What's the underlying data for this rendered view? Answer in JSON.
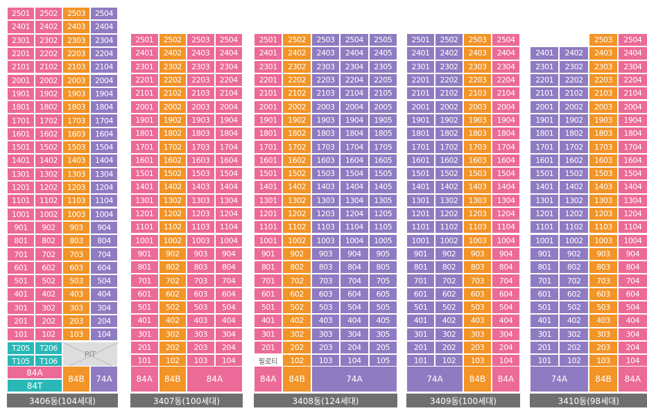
{
  "buildings": [
    {
      "name": "3406동(104세대)",
      "top_floor": 25,
      "first_tall_floor": 24,
      "units": [
        "01",
        "02",
        "03",
        "04"
      ],
      "unit_colors": [
        "p",
        "p",
        "o",
        "v"
      ],
      "top_floor_units": [
        "01",
        "02",
        "03",
        "04"
      ],
      "extra_cells": [
        {
          "text": "T205",
          "color": "t"
        },
        {
          "text": "T206",
          "color": "t"
        },
        {
          "text": "T105",
          "color": "t"
        },
        {
          "text": "T106",
          "color": "t"
        }
      ],
      "pit_label": "PIT",
      "types": [
        {
          "text": "84A",
          "color": "p"
        },
        {
          "text": "84T",
          "color": "t"
        },
        {
          "text": "84B",
          "color": "o"
        },
        {
          "text": "74A",
          "color": "v"
        }
      ]
    },
    {
      "name": "3407동(100세대)",
      "top_floor": 25,
      "units": [
        "01",
        "02",
        "03",
        "04"
      ],
      "unit_colors": [
        "p",
        "o",
        "p",
        "p"
      ],
      "types": [
        {
          "text": "84A",
          "color": "p"
        },
        {
          "text": "84B",
          "color": "o"
        },
        {
          "text": "84A",
          "color": "p"
        }
      ]
    },
    {
      "name": "3408동(124세대)",
      "top_floor": 25,
      "units": [
        "01",
        "02",
        "03",
        "04",
        "05"
      ],
      "unit_colors": [
        "p",
        "o",
        "v",
        "v",
        "v"
      ],
      "piloti_label": "필로티",
      "types": [
        {
          "text": "84A",
          "color": "p"
        },
        {
          "text": "84B",
          "color": "o"
        },
        {
          "text": "74A",
          "color": "v"
        }
      ]
    },
    {
      "name": "3409동(100세대)",
      "top_floor": 25,
      "units": [
        "01",
        "02",
        "03",
        "04"
      ],
      "unit_colors": [
        "v",
        "v",
        "o",
        "p"
      ],
      "types": [
        {
          "text": "74A",
          "color": "v"
        },
        {
          "text": "84B",
          "color": "o"
        },
        {
          "text": "84A",
          "color": "p"
        }
      ]
    },
    {
      "name": "3410동(98세대)",
      "top_floor": 25,
      "units": [
        "01",
        "02",
        "03",
        "04"
      ],
      "unit_colors": [
        "v",
        "v",
        "o",
        "p"
      ],
      "partial_top": {
        "floor": 25,
        "units": [
          "03",
          "04"
        ]
      },
      "types": [
        {
          "text": "74A",
          "color": "v"
        },
        {
          "text": "84B",
          "color": "o"
        },
        {
          "text": "84A",
          "color": "p"
        }
      ]
    }
  ]
}
